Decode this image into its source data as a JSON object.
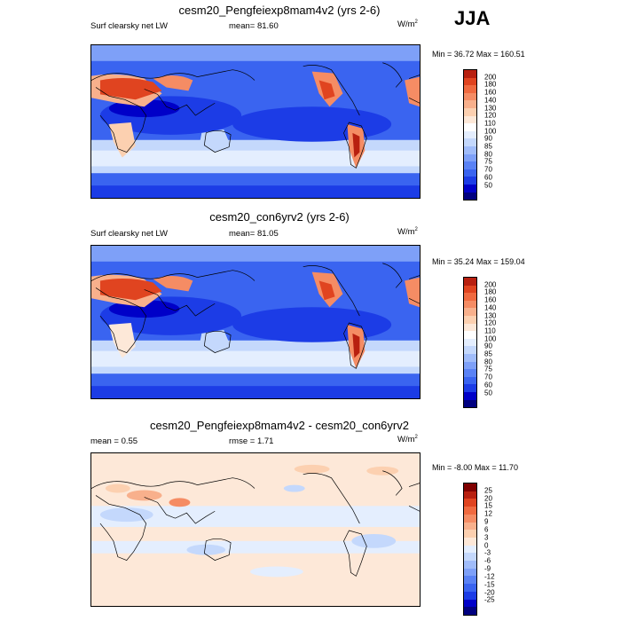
{
  "season_label": "JJA",
  "colorbar_hex_abs": [
    "#000080",
    "#0000c8",
    "#1c3ce6",
    "#3a64f0",
    "#5a82f5",
    "#7ea0f8",
    "#a0bcfa",
    "#c4d8fc",
    "#e4eefe",
    "#ffffff",
    "#fde8d8",
    "#fcd0b0",
    "#f8b08c",
    "#f58c64",
    "#f06a40",
    "#e04420",
    "#b82010",
    "#800000"
  ],
  "colorbar_hex_diff": [
    "#000080",
    "#0000c8",
    "#1c3ce6",
    "#3a64f0",
    "#5a82f5",
    "#7ea0f8",
    "#a0bcfa",
    "#c4d8fc",
    "#e4eefe",
    "#fde8d8",
    "#fcd0b0",
    "#f8b08c",
    "#f58c64",
    "#f06a40",
    "#e04420",
    "#b82010",
    "#800000"
  ],
  "panels": [
    {
      "title": "cesm20_Pengfeiexp8mam4v2 (yrs 2-6)",
      "left_label": "Surf clearsky net LW",
      "mean_label": "mean=",
      "mean_value": "81.60",
      "units": "W/m",
      "units_exp": "2",
      "min_label": "Min =",
      "min_value": "36.72",
      "max_label": "Max =",
      "max_value": "160.51",
      "colorbar_levels": [
        "200",
        "180",
        "160",
        "140",
        "130",
        "120",
        "110",
        "100",
        "90",
        "85",
        "80",
        "75",
        "70",
        "60",
        "50"
      ]
    },
    {
      "title": "cesm20_con6yrv2 (yrs 2-6)",
      "left_label": "Surf clearsky net LW",
      "mean_label": "mean=",
      "mean_value": "81.05",
      "units": "W/m",
      "units_exp": "2",
      "min_label": "Min =",
      "min_value": "35.24",
      "max_label": "Max =",
      "max_value": "159.04",
      "colorbar_levels": [
        "200",
        "180",
        "160",
        "140",
        "130",
        "120",
        "110",
        "100",
        "90",
        "85",
        "80",
        "75",
        "70",
        "60",
        "50"
      ]
    },
    {
      "title": "cesm20_Pengfeiexp8mam4v2 - cesm20_con6yrv2",
      "left_label": "mean =",
      "left_value": "0.55",
      "rmse_label": "rmse =",
      "rmse_value": "1.71",
      "units": "W/m",
      "units_exp": "2",
      "min_label": "Min =",
      "min_value": "-8.00",
      "max_label": "Max =",
      "max_value": "11.70",
      "colorbar_levels": [
        "25",
        "20",
        "15",
        "12",
        "9",
        "6",
        "3",
        "0",
        "-3",
        "-6",
        "-9",
        "-12",
        "-15",
        "-20",
        "-25"
      ]
    }
  ]
}
